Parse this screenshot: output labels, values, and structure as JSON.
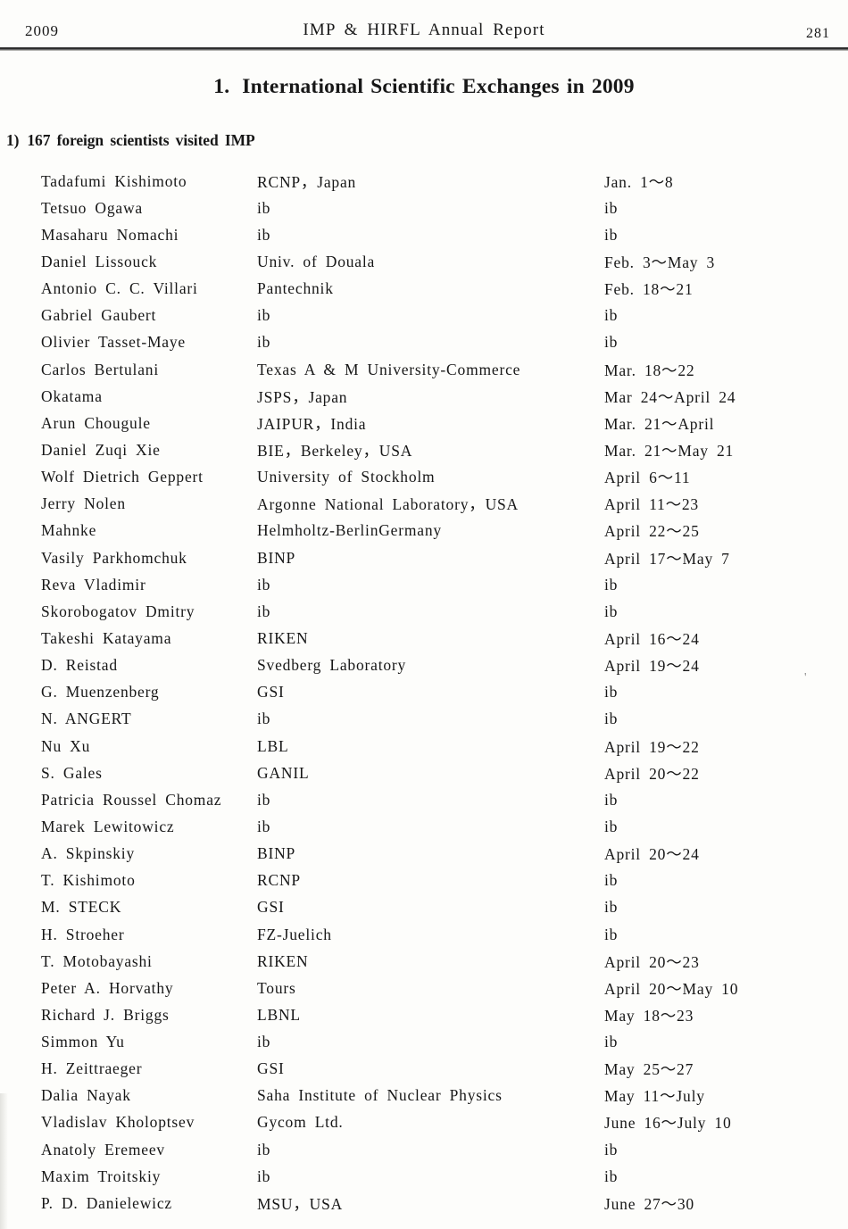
{
  "header": {
    "year": "2009",
    "report_title": "IMP & HIRFL Annual Report",
    "page_number": "281"
  },
  "main_title": {
    "number": "1.",
    "text": "International Scientific Exchanges in 2009"
  },
  "section_heading": {
    "number": "1)",
    "text": "167 foreign scientists visited IMP"
  },
  "visitor_table": {
    "rows": [
      {
        "name": "Tadafumi Kishimoto",
        "affiliation": "RCNP，Japan",
        "dates": "Jan. 1～8"
      },
      {
        "name": "Tetsuo Ogawa",
        "affiliation": "ib",
        "dates": "ib"
      },
      {
        "name": "Masaharu Nomachi",
        "affiliation": "ib",
        "dates": "ib"
      },
      {
        "name": "Daniel Lissouck",
        "affiliation": "Univ. of Douala",
        "dates": "Feb. 3～May 3"
      },
      {
        "name": "Antonio C. C. Villari",
        "affiliation": "Pantechnik",
        "dates": "Feb. 18～21"
      },
      {
        "name": "Gabriel Gaubert",
        "affiliation": "ib",
        "dates": "ib"
      },
      {
        "name": "Olivier Tasset-Maye",
        "affiliation": "ib",
        "dates": "ib"
      },
      {
        "name": "Carlos Bertulani",
        "affiliation": "Texas A & M University-Commerce",
        "dates": "Mar. 18～22"
      },
      {
        "name": "Okatama",
        "affiliation": "JSPS，Japan",
        "dates": "Mar 24～April 24"
      },
      {
        "name": "Arun Chougule",
        "affiliation": "JAIPUR，India",
        "dates": "Mar. 21～April"
      },
      {
        "name": "Daniel Zuqi Xie",
        "affiliation": "BIE，Berkeley，USA",
        "dates": "Mar. 21～May 21"
      },
      {
        "name": "Wolf Dietrich Geppert",
        "affiliation": "University of Stockholm",
        "dates": "April 6～11"
      },
      {
        "name": "Jerry Nolen",
        "affiliation": "Argonne National Laboratory，USA",
        "dates": "April 11～23"
      },
      {
        "name": "Mahnke",
        "affiliation": "Helmholtz-BerlinGermany",
        "dates": "April 22～25"
      },
      {
        "name": "Vasily Parkhomchuk",
        "affiliation": "BINP",
        "dates": "April 17～May 7"
      },
      {
        "name": "Reva Vladimir",
        "affiliation": "ib",
        "dates": "ib"
      },
      {
        "name": "Skorobogatov Dmitry",
        "affiliation": "ib",
        "dates": "ib"
      },
      {
        "name": "Takeshi Katayama",
        "affiliation": "RIKEN",
        "dates": "April 16～24"
      },
      {
        "name": "D. Reistad",
        "affiliation": "Svedberg Laboratory",
        "dates": "April 19～24"
      },
      {
        "name": "G. Muenzenberg",
        "affiliation": "GSI",
        "dates": "ib"
      },
      {
        "name": "N. ANGERT",
        "affiliation": "ib",
        "dates": "ib"
      },
      {
        "name": "Nu Xu",
        "affiliation": "LBL",
        "dates": "April 19～22"
      },
      {
        "name": "S. Gales",
        "affiliation": "GANIL",
        "dates": "April 20～22"
      },
      {
        "name": "Patricia Roussel Chomaz",
        "affiliation": "ib",
        "dates": "ib"
      },
      {
        "name": "Marek Lewitowicz",
        "affiliation": "ib",
        "dates": "ib"
      },
      {
        "name": "A. Skpinskiy",
        "affiliation": "BINP",
        "dates": "April 20～24"
      },
      {
        "name": "T. Kishimoto",
        "affiliation": "RCNP",
        "dates": "ib"
      },
      {
        "name": "M. STECK",
        "affiliation": "GSI",
        "dates": "ib"
      },
      {
        "name": "H. Stroeher",
        "affiliation": "FZ-Juelich",
        "dates": "ib"
      },
      {
        "name": "T. Motobayashi",
        "affiliation": "RIKEN",
        "dates": "April 20～23"
      },
      {
        "name": "Peter A. Horvathy",
        "affiliation": "Tours",
        "dates": "April 20～May 10"
      },
      {
        "name": "Richard J. Briggs",
        "affiliation": "LBNL",
        "dates": "May 18～23"
      },
      {
        "name": "Simmon Yu",
        "affiliation": "ib",
        "dates": "ib"
      },
      {
        "name": "H. Zeittraeger",
        "affiliation": "GSI",
        "dates": "May 25～27"
      },
      {
        "name": "Dalia Nayak",
        "affiliation": "Saha Institute of Nuclear Physics",
        "dates": "May 11～July"
      },
      {
        "name": "Vladislav Kholoptsev",
        "affiliation": "Gycom Ltd.",
        "dates": "June 16～July 10"
      },
      {
        "name": "Anatoly Eremeev",
        "affiliation": "ib",
        "dates": "ib"
      },
      {
        "name": "Maxim Troitskiy",
        "affiliation": "ib",
        "dates": "ib"
      },
      {
        "name": "P. D. Danielewicz",
        "affiliation": "MSU，USA",
        "dates": "June 27～30"
      }
    ]
  },
  "scan_artifact_mark": "'"
}
